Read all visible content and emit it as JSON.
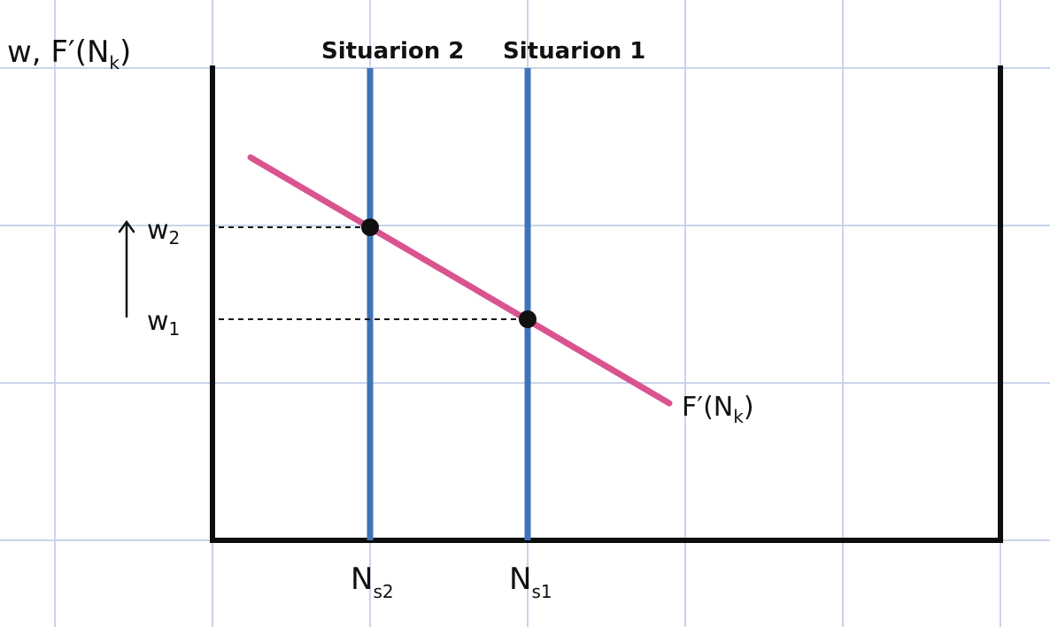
{
  "colors": {
    "grid": "#c9d4ea",
    "axis": "#0d0d0d",
    "supply": "#3f73b8",
    "demand": "#d9548f",
    "point": "#111111"
  },
  "labels": {
    "y_axis_main": "w, F′(N",
    "y_axis_sub": "k",
    "y_axis_close": ")",
    "situation_2": "Situarion 2",
    "situation_1": "Situarion 1",
    "w2_main": "w",
    "w2_sub": "2",
    "w1_main": "w",
    "w1_sub": "1",
    "curve_main": "F′(N",
    "curve_sub": "k",
    "curve_close": ")",
    "ns2_main": "N",
    "ns2_sub": "s2",
    "ns1_main": "N",
    "ns1_sub": "s1"
  },
  "chart_data": {
    "type": "line",
    "series": [
      {
        "name": "F′(Nk)",
        "kind": "downward-sloping line"
      },
      {
        "name": "Situarion 2",
        "kind": "vertical supply line",
        "x": "Ns2"
      },
      {
        "name": "Situarion 1",
        "kind": "vertical supply line",
        "x": "Ns1"
      }
    ],
    "points": [
      {
        "x": "Ns2",
        "y": "w2"
      },
      {
        "x": "Ns1",
        "y": "w1"
      }
    ],
    "annotation": "upward arrow from w1 to w2",
    "grid": true
  }
}
